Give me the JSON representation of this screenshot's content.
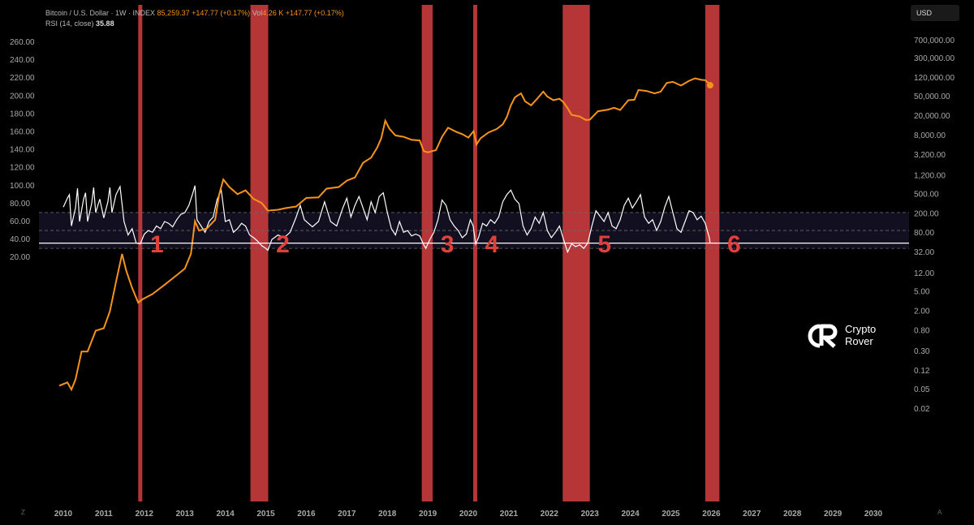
{
  "header": {
    "symbol": "Bitcoin / U.S. Dollar · 1W · INDEX",
    "price": "85,259.37",
    "change": "+147.77 (+0.17%)",
    "vol_label": "Vol",
    "vol_value": "4.26 K",
    "vol_change": "+147.77 (+0.17%)",
    "rsi_label": "RSI (14, close)",
    "rsi_value": "35.88"
  },
  "currency_button": "USD",
  "brand": {
    "line1": "Crypto",
    "line2": "Rover"
  },
  "corner_left": "Z",
  "corner_right": "A",
  "colors": {
    "price": "#f7931a",
    "rsi": "#ffffff",
    "zone": "#c0393b",
    "background": "#000000"
  },
  "chart_data": {
    "type": "line",
    "x_ticks": [
      "2010",
      "2011",
      "2012",
      "2013",
      "2014",
      "2015",
      "2016",
      "2017",
      "2018",
      "2019",
      "2020",
      "2021",
      "2022",
      "2023",
      "2024",
      "2025",
      "2026",
      "2027",
      "2028",
      "2029",
      "2030"
    ],
    "left_axis": {
      "ticks": [
        "260.00",
        "240.00",
        "220.00",
        "200.00",
        "180.00",
        "160.00",
        "140.00",
        "120.00",
        "100.00",
        "80.00",
        "60.00",
        "40.00",
        "20.00"
      ],
      "range": [
        20,
        260
      ]
    },
    "right_axis": {
      "scale": "log",
      "ticks": [
        "700,000.00",
        "300,000.00",
        "120,000.00",
        "50,000.00",
        "20,000.00",
        "8,000.00",
        "3,200.00",
        "1,200.00",
        "500.00",
        "200.00",
        "80.00",
        "32.00",
        "12.00",
        "5.00",
        "2.00",
        "0.80",
        "0.30",
        "0.12",
        "0.05",
        "0.02"
      ]
    },
    "rsi_levels": {
      "upper": 70,
      "middle": 50,
      "lower": 30,
      "current": 35.88
    },
    "zones": [
      {
        "label": "1",
        "start": 2011.85,
        "end": 2011.95
      },
      {
        "label": "2",
        "start": 2014.62,
        "end": 2015.06
      },
      {
        "label": "3",
        "start": 2018.85,
        "end": 2019.12
      },
      {
        "label": "4",
        "start": 2020.12,
        "end": 2020.22
      },
      {
        "label": "5",
        "start": 2022.33,
        "end": 2023.0
      },
      {
        "label": "6",
        "start": 2025.85,
        "end": 2026.2
      }
    ],
    "series": [
      {
        "name": "Bitcoin / U.S. Dollar",
        "points": [
          [
            2009.9,
            0.06
          ],
          [
            2010.1,
            0.07
          ],
          [
            2010.2,
            0.05
          ],
          [
            2010.3,
            0.08
          ],
          [
            2010.45,
            0.3
          ],
          [
            2010.6,
            0.3
          ],
          [
            2010.8,
            0.8
          ],
          [
            2011.0,
            0.9
          ],
          [
            2011.15,
            2
          ],
          [
            2011.3,
            8
          ],
          [
            2011.45,
            30
          ],
          [
            2011.55,
            14
          ],
          [
            2011.7,
            6
          ],
          [
            2011.85,
            3
          ],
          [
            2011.95,
            3.5
          ],
          [
            2012.2,
            4.5
          ],
          [
            2012.5,
            7
          ],
          [
            2012.8,
            11
          ],
          [
            2013.0,
            15
          ],
          [
            2013.15,
            30
          ],
          [
            2013.25,
            140
          ],
          [
            2013.35,
            90
          ],
          [
            2013.55,
            100
          ],
          [
            2013.75,
            150
          ],
          [
            2013.85,
            500
          ],
          [
            2013.95,
            1000
          ],
          [
            2014.1,
            700
          ],
          [
            2014.3,
            500
          ],
          [
            2014.5,
            600
          ],
          [
            2014.7,
            400
          ],
          [
            2014.9,
            330
          ],
          [
            2015.05,
            230
          ],
          [
            2015.3,
            240
          ],
          [
            2015.5,
            260
          ],
          [
            2015.75,
            280
          ],
          [
            2016.0,
            420
          ],
          [
            2016.3,
            430
          ],
          [
            2016.5,
            650
          ],
          [
            2016.8,
            700
          ],
          [
            2017.0,
            950
          ],
          [
            2017.2,
            1100
          ],
          [
            2017.4,
            2200
          ],
          [
            2017.6,
            2800
          ],
          [
            2017.75,
            4500
          ],
          [
            2017.85,
            7000
          ],
          [
            2017.95,
            16000
          ],
          [
            2018.05,
            11000
          ],
          [
            2018.2,
            8000
          ],
          [
            2018.4,
            7500
          ],
          [
            2018.6,
            6500
          ],
          [
            2018.8,
            6300
          ],
          [
            2018.9,
            3800
          ],
          [
            2019.0,
            3600
          ],
          [
            2019.2,
            4000
          ],
          [
            2019.35,
            7500
          ],
          [
            2019.5,
            11500
          ],
          [
            2019.7,
            9500
          ],
          [
            2019.85,
            8500
          ],
          [
            2020.0,
            7200
          ],
          [
            2020.13,
            9800
          ],
          [
            2020.2,
            5200
          ],
          [
            2020.3,
            7000
          ],
          [
            2020.5,
            9200
          ],
          [
            2020.7,
            10800
          ],
          [
            2020.85,
            13500
          ],
          [
            2020.95,
            19000
          ],
          [
            2021.05,
            33000
          ],
          [
            2021.15,
            48000
          ],
          [
            2021.3,
            58000
          ],
          [
            2021.4,
            40000
          ],
          [
            2021.55,
            33000
          ],
          [
            2021.7,
            45000
          ],
          [
            2021.85,
            63000
          ],
          [
            2021.95,
            50000
          ],
          [
            2022.1,
            42000
          ],
          [
            2022.25,
            45000
          ],
          [
            2022.35,
            38000
          ],
          [
            2022.45,
            29000
          ],
          [
            2022.55,
            21000
          ],
          [
            2022.75,
            19500
          ],
          [
            2022.9,
            16500
          ],
          [
            2023.0,
            16800
          ],
          [
            2023.2,
            25000
          ],
          [
            2023.45,
            27000
          ],
          [
            2023.6,
            29500
          ],
          [
            2023.75,
            26500
          ],
          [
            2023.95,
            42000
          ],
          [
            2024.1,
            43000
          ],
          [
            2024.2,
            68000
          ],
          [
            2024.4,
            65000
          ],
          [
            2024.6,
            58000
          ],
          [
            2024.75,
            63000
          ],
          [
            2024.9,
            95000
          ],
          [
            2025.05,
            100000
          ],
          [
            2025.25,
            84000
          ],
          [
            2025.45,
            105000
          ],
          [
            2025.6,
            118000
          ],
          [
            2025.75,
            110000
          ],
          [
            2025.85,
            108000
          ],
          [
            2025.92,
            96000
          ],
          [
            2025.97,
            85259
          ]
        ]
      },
      {
        "name": "RSI (14, close)",
        "points": [
          [
            2010.0,
            76
          ],
          [
            2010.1,
            86
          ],
          [
            2010.15,
            90
          ],
          [
            2010.2,
            55
          ],
          [
            2010.3,
            75
          ],
          [
            2010.35,
            97
          ],
          [
            2010.4,
            60
          ],
          [
            2010.5,
            85
          ],
          [
            2010.55,
            92
          ],
          [
            2010.6,
            60
          ],
          [
            2010.7,
            80
          ],
          [
            2010.75,
            98
          ],
          [
            2010.8,
            70
          ],
          [
            2010.9,
            85
          ],
          [
            2011.0,
            64
          ],
          [
            2011.1,
            82
          ],
          [
            2011.15,
            98
          ],
          [
            2011.2,
            70
          ],
          [
            2011.3,
            90
          ],
          [
            2011.4,
            99
          ],
          [
            2011.5,
            60
          ],
          [
            2011.6,
            45
          ],
          [
            2011.7,
            52
          ],
          [
            2011.8,
            36
          ],
          [
            2011.9,
            35
          ],
          [
            2012.0,
            46
          ],
          [
            2012.1,
            50
          ],
          [
            2012.2,
            48
          ],
          [
            2012.3,
            55
          ],
          [
            2012.4,
            52
          ],
          [
            2012.5,
            60
          ],
          [
            2012.6,
            58
          ],
          [
            2012.7,
            54
          ],
          [
            2012.8,
            62
          ],
          [
            2012.9,
            68
          ],
          [
            2013.0,
            70
          ],
          [
            2013.1,
            78
          ],
          [
            2013.2,
            92
          ],
          [
            2013.25,
            100
          ],
          [
            2013.3,
            62
          ],
          [
            2013.4,
            55
          ],
          [
            2013.5,
            48
          ],
          [
            2013.6,
            60
          ],
          [
            2013.7,
            65
          ],
          [
            2013.8,
            85
          ],
          [
            2013.9,
            95
          ],
          [
            2014.0,
            60
          ],
          [
            2014.1,
            62
          ],
          [
            2014.2,
            48
          ],
          [
            2014.3,
            52
          ],
          [
            2014.4,
            58
          ],
          [
            2014.5,
            55
          ],
          [
            2014.6,
            45
          ],
          [
            2014.7,
            42
          ],
          [
            2014.8,
            38
          ],
          [
            2014.9,
            33
          ],
          [
            2015.0,
            30
          ],
          [
            2015.05,
            28
          ],
          [
            2015.15,
            40
          ],
          [
            2015.3,
            45
          ],
          [
            2015.45,
            42
          ],
          [
            2015.6,
            48
          ],
          [
            2015.75,
            65
          ],
          [
            2015.85,
            78
          ],
          [
            2015.95,
            62
          ],
          [
            2016.05,
            58
          ],
          [
            2016.15,
            54
          ],
          [
            2016.3,
            60
          ],
          [
            2016.45,
            82
          ],
          [
            2016.6,
            60
          ],
          [
            2016.75,
            55
          ],
          [
            2016.9,
            75
          ],
          [
            2017.0,
            86
          ],
          [
            2017.1,
            65
          ],
          [
            2017.2,
            78
          ],
          [
            2017.3,
            88
          ],
          [
            2017.4,
            75
          ],
          [
            2017.5,
            62
          ],
          [
            2017.6,
            82
          ],
          [
            2017.7,
            70
          ],
          [
            2017.8,
            88
          ],
          [
            2017.9,
            92
          ],
          [
            2018.0,
            70
          ],
          [
            2018.1,
            52
          ],
          [
            2018.2,
            45
          ],
          [
            2018.3,
            60
          ],
          [
            2018.4,
            48
          ],
          [
            2018.5,
            50
          ],
          [
            2018.6,
            44
          ],
          [
            2018.7,
            46
          ],
          [
            2018.8,
            44
          ],
          [
            2018.9,
            34
          ],
          [
            2018.95,
            30
          ],
          [
            2019.05,
            40
          ],
          [
            2019.15,
            48
          ],
          [
            2019.25,
            62
          ],
          [
            2019.35,
            84
          ],
          [
            2019.45,
            78
          ],
          [
            2019.55,
            62
          ],
          [
            2019.65,
            55
          ],
          [
            2019.75,
            50
          ],
          [
            2019.85,
            42
          ],
          [
            2019.95,
            46
          ],
          [
            2020.05,
            62
          ],
          [
            2020.12,
            55
          ],
          [
            2020.18,
            35
          ],
          [
            2020.25,
            42
          ],
          [
            2020.35,
            58
          ],
          [
            2020.45,
            55
          ],
          [
            2020.55,
            62
          ],
          [
            2020.65,
            58
          ],
          [
            2020.75,
            65
          ],
          [
            2020.85,
            82
          ],
          [
            2020.95,
            90
          ],
          [
            2021.05,
            95
          ],
          [
            2021.15,
            85
          ],
          [
            2021.25,
            80
          ],
          [
            2021.35,
            55
          ],
          [
            2021.45,
            45
          ],
          [
            2021.55,
            52
          ],
          [
            2021.65,
            65
          ],
          [
            2021.75,
            58
          ],
          [
            2021.85,
            70
          ],
          [
            2021.95,
            50
          ],
          [
            2022.05,
            42
          ],
          [
            2022.15,
            48
          ],
          [
            2022.25,
            55
          ],
          [
            2022.35,
            40
          ],
          [
            2022.45,
            26
          ],
          [
            2022.55,
            35
          ],
          [
            2022.65,
            32
          ],
          [
            2022.75,
            34
          ],
          [
            2022.85,
            30
          ],
          [
            2022.95,
            36
          ],
          [
            2023.05,
            55
          ],
          [
            2023.15,
            72
          ],
          [
            2023.25,
            66
          ],
          [
            2023.35,
            60
          ],
          [
            2023.45,
            70
          ],
          [
            2023.55,
            55
          ],
          [
            2023.65,
            52
          ],
          [
            2023.75,
            62
          ],
          [
            2023.85,
            78
          ],
          [
            2023.95,
            86
          ],
          [
            2024.05,
            75
          ],
          [
            2024.15,
            82
          ],
          [
            2024.25,
            90
          ],
          [
            2024.35,
            65
          ],
          [
            2024.45,
            58
          ],
          [
            2024.55,
            62
          ],
          [
            2024.65,
            50
          ],
          [
            2024.75,
            60
          ],
          [
            2024.85,
            76
          ],
          [
            2024.95,
            88
          ],
          [
            2025.05,
            70
          ],
          [
            2025.15,
            52
          ],
          [
            2025.25,
            48
          ],
          [
            2025.35,
            60
          ],
          [
            2025.45,
            72
          ],
          [
            2025.55,
            70
          ],
          [
            2025.65,
            62
          ],
          [
            2025.75,
            66
          ],
          [
            2025.85,
            58
          ],
          [
            2025.95,
            42
          ],
          [
            2025.97,
            35.88
          ]
        ]
      }
    ]
  }
}
